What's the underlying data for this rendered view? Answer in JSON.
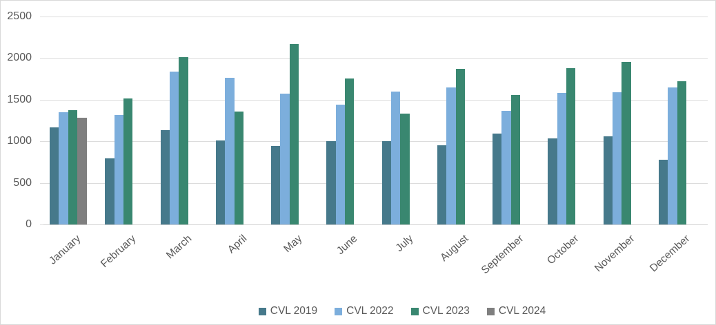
{
  "chart_data": {
    "type": "bar",
    "title": "",
    "xlabel": "",
    "ylabel": "",
    "categories": [
      "January",
      "February",
      "March",
      "April",
      "May",
      "June",
      "July",
      "August",
      "September",
      "October",
      "November",
      "December"
    ],
    "series": [
      {
        "name": "CVL 2019",
        "color": "#46798b",
        "values": [
          1170,
          795,
          1135,
          1010,
          940,
          1000,
          1000,
          950,
          1090,
          1035,
          1060,
          780
        ]
      },
      {
        "name": "CVL 2022",
        "color": "#7caedc",
        "values": [
          1350,
          1320,
          1840,
          1765,
          1575,
          1440,
          1600,
          1650,
          1370,
          1585,
          1590,
          1650
        ]
      },
      {
        "name": "CVL 2023",
        "color": "#398770",
        "values": [
          1375,
          1515,
          2010,
          1360,
          2170,
          1755,
          1330,
          1870,
          1560,
          1880,
          1950,
          1720
        ]
      },
      {
        "name": "CVL 2024",
        "color": "#7f7f7f",
        "values": [
          1285,
          null,
          null,
          null,
          null,
          null,
          null,
          null,
          null,
          null,
          null,
          null
        ]
      }
    ],
    "ylim": [
      0,
      2500
    ],
    "yticks": [
      0,
      500,
      1000,
      1500,
      2000,
      2500
    ],
    "grid": true,
    "legend_position": "bottom",
    "colors": {
      "gridline": "#dcdcdc",
      "axis_line": "#cfcfcf",
      "tick_text": "#595959",
      "frame_border": "#d9d9d9",
      "background": "#ffffff"
    }
  }
}
